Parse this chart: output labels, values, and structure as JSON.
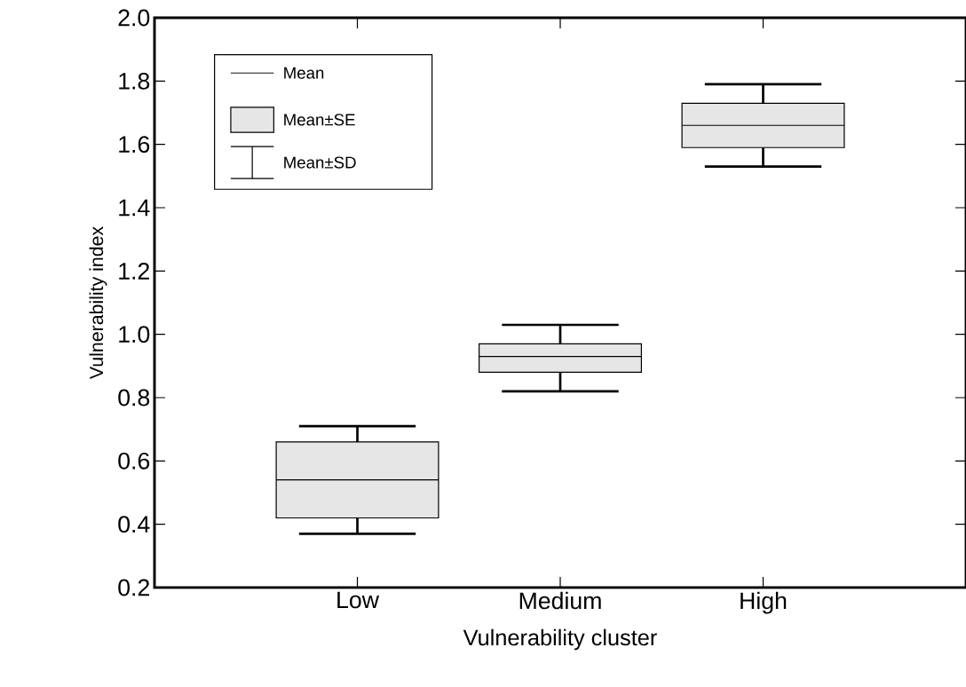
{
  "chart_data": {
    "type": "box",
    "xlabel": "Vulnerability cluster",
    "ylabel": "Vulnerability index",
    "categories": [
      "Low",
      "Medium",
      "High"
    ],
    "boxes": [
      {
        "low": 0.37,
        "q1": 0.42,
        "median": 0.54,
        "q3": 0.66,
        "high": 0.71
      },
      {
        "low": 0.82,
        "q1": 0.88,
        "median": 0.93,
        "q3": 0.97,
        "high": 1.03
      },
      {
        "low": 1.53,
        "q1": 1.59,
        "median": 1.66,
        "q3": 1.73,
        "high": 1.79
      }
    ],
    "color": "#e6e6e6",
    "ylim": [
      0.2,
      2.0
    ],
    "yticks": [
      0.2,
      0.4,
      0.6,
      0.8,
      {
        "value": 1,
        "label": "1.0"
      },
      1.2,
      1.4,
      1.6,
      1.8,
      {
        "value": 2,
        "label": "2.0"
      }
    ],
    "annotations": [
      "Mean",
      "Mean±SE",
      "Mean±SD"
    ]
  }
}
